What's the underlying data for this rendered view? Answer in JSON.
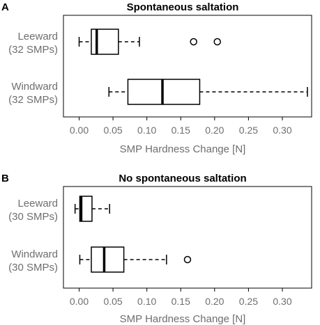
{
  "chart_data": [
    {
      "type": "boxplot",
      "panel_letter": "A",
      "title": "Spontaneous saltation",
      "xlabel": "SMP Hardness Change [N]",
      "xlim": [
        -0.02,
        0.345
      ],
      "xticks": [
        0.0,
        0.05,
        0.1,
        0.15,
        0.2,
        0.25,
        0.3
      ],
      "xtick_labels": [
        "0.00",
        "0.05",
        "0.10",
        "0.15",
        "0.20",
        "0.25",
        "0.30"
      ],
      "categories": [
        {
          "name": "Leeward",
          "sub": "(32 SMPs)",
          "whisker_low": 0.0,
          "q1": 0.018,
          "median": 0.026,
          "q3": 0.058,
          "whisker_high": 0.089,
          "outliers": [
            0.169,
            0.204
          ]
        },
        {
          "name": "Windward",
          "sub": "(32 SMPs)",
          "whisker_low": 0.044,
          "q1": 0.072,
          "median": 0.123,
          "q3": 0.178,
          "whisker_high": 0.337,
          "outliers": []
        }
      ]
    },
    {
      "type": "boxplot",
      "panel_letter": "B",
      "title": "No spontaneous saltation",
      "xlabel": "SMP Hardness Change [N]",
      "xlim": [
        -0.02,
        0.345
      ],
      "xticks": [
        0.0,
        0.05,
        0.1,
        0.15,
        0.2,
        0.25,
        0.3
      ],
      "xtick_labels": [
        "0.00",
        "0.05",
        "0.10",
        "0.15",
        "0.20",
        "0.25",
        "0.30"
      ],
      "categories": [
        {
          "name": "Leeward",
          "sub": "(30 SMPs)",
          "whisker_low": -0.006,
          "q1": 0.001,
          "median": 0.003,
          "q3": 0.019,
          "whisker_high": 0.045,
          "outliers": []
        },
        {
          "name": "Windward",
          "sub": "(30 SMPs)",
          "whisker_low": 0.001,
          "q1": 0.018,
          "median": 0.037,
          "q3": 0.066,
          "whisker_high": 0.129,
          "outliers": [
            0.16
          ]
        }
      ]
    }
  ]
}
